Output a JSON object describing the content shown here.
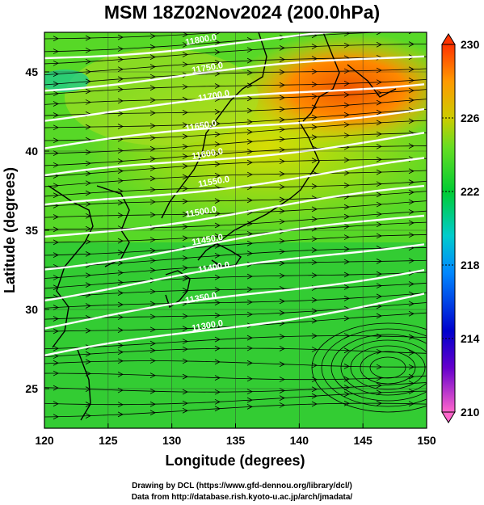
{
  "title": "MSM 18Z02Nov2024 (200.0hPa)",
  "axes": {
    "xlabel": "Longitude (degrees)",
    "ylabel": "Latitude  (degrees)",
    "x_ticks": [
      "120",
      "125",
      "130",
      "135",
      "140",
      "145",
      "150"
    ],
    "y_ticks": [
      "25",
      "30",
      "35",
      "40",
      "45"
    ]
  },
  "colorbar": {
    "tick_labels": [
      "230",
      "226",
      "222",
      "218",
      "214",
      "210"
    ]
  },
  "contour_labels": [
    "11800.0",
    "11750.0",
    "11700.0",
    "11650.0",
    "11600.0",
    "11550.0",
    "11500.0",
    "11450.0",
    "11400.0",
    "11350.0",
    "11300.0"
  ],
  "credits": {
    "line1": "Drawing by DCL (https://www.gfd-dennou.org/library/dcl/)",
    "line2": "Data from http://database.rish.kyoto-u.ac.jp/arch/jmadata/"
  },
  "chart_data": {
    "type": "heatmap",
    "field": "temperature (shaded), geopotential height contours (white), wind streamlines (black)",
    "xlim": [
      120,
      150
    ],
    "ylim": [
      22.5,
      47.5
    ],
    "color_range": [
      210,
      230
    ],
    "colors": {
      "210": "#ff66cc",
      "214": "#0000cc",
      "218": "#00cccc",
      "222": "#00cc33",
      "226": "#cccc00",
      "230": "#ff3300"
    },
    "grid": true
  }
}
